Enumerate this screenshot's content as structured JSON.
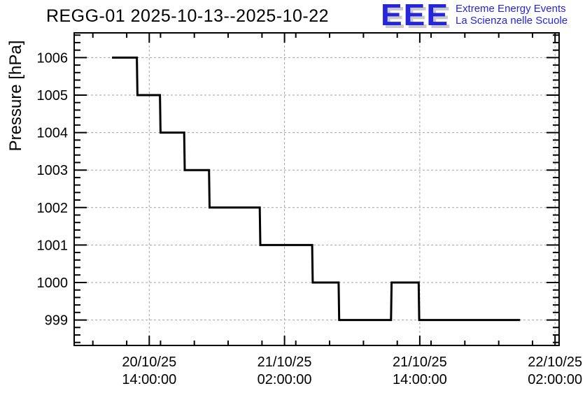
{
  "header": {
    "title": "REGG-01 2025-10-13--2025-10-22",
    "logo": {
      "acronym": "EEE",
      "tagline_line1": "Extreme Energy Events",
      "tagline_line2": "La Scienza nelle Scuole",
      "blue": "#2525dd",
      "shadow": "#c9c9c9"
    }
  },
  "chart_data": {
    "type": "line",
    "style": "step",
    "title": "REGG-01 2025-10-13--2025-10-22",
    "xlabel": "",
    "ylabel": "Pressure [hPa]",
    "x_unit": "hours since 2025-10-20 00:00:00",
    "xlim": [
      7.34,
      50.36
    ],
    "ylim": [
      998.32,
      1006.66
    ],
    "grid": true,
    "legend": false,
    "line_color": "#000000",
    "grid_color": "#a3a3a3",
    "axis_color": "#000000",
    "x_major_ticks": [
      {
        "t": 14,
        "label_date": "20/10/25",
        "label_time": "14:00:00"
      },
      {
        "t": 26,
        "label_date": "21/10/25",
        "label_time": "02:00:00"
      },
      {
        "t": 38,
        "label_date": "21/10/25",
        "label_time": "14:00:00"
      },
      {
        "t": 50,
        "label_date": "22/10/25",
        "label_time": "02:00:00"
      }
    ],
    "x_minor_step_hours": 3,
    "y_major_ticks": [
      999,
      1000,
      1001,
      1002,
      1003,
      1004,
      1005,
      1006
    ],
    "y_minor_step": 0.2,
    "points": [
      [
        10.7,
        1006
      ],
      [
        12.9,
        1006
      ],
      [
        12.95,
        1005
      ],
      [
        14.95,
        1005
      ],
      [
        15.0,
        1004
      ],
      [
        17.1,
        1004
      ],
      [
        17.15,
        1003
      ],
      [
        19.3,
        1003
      ],
      [
        19.35,
        1002
      ],
      [
        23.8,
        1002
      ],
      [
        23.85,
        1001
      ],
      [
        28.45,
        1001
      ],
      [
        28.5,
        1000
      ],
      [
        30.8,
        1000
      ],
      [
        30.85,
        999
      ],
      [
        35.45,
        999
      ],
      [
        35.5,
        1000
      ],
      [
        37.9,
        1000
      ],
      [
        37.95,
        999
      ],
      [
        46.9,
        999
      ]
    ]
  }
}
